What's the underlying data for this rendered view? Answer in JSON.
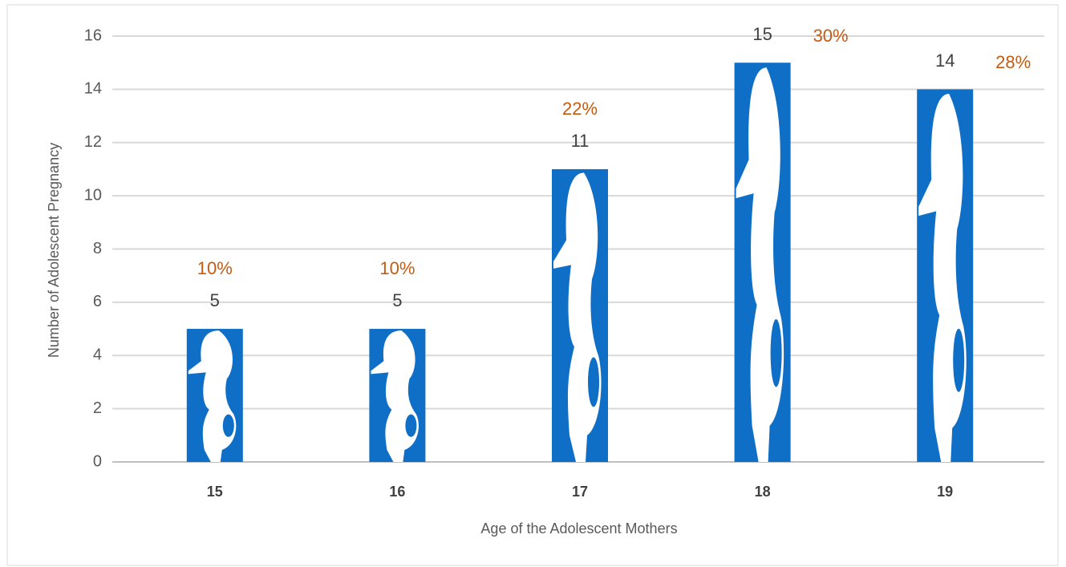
{
  "chart_data": {
    "type": "bar",
    "x_label": "Age of the Adolescent Mothers",
    "y_label": "Number of Adolescent Pregnancy",
    "categories": [
      "15",
      "16",
      "17",
      "18",
      "19"
    ],
    "values": [
      5,
      5,
      11,
      15,
      14
    ],
    "percent_labels": [
      "10%",
      "10%",
      "22%",
      "30%",
      "28%"
    ],
    "color": "#0f6fc6",
    "ylim": [
      0,
      16
    ],
    "yticks": [
      0,
      2,
      4,
      6,
      8,
      10,
      12,
      14,
      16
    ],
    "grid": true
  }
}
